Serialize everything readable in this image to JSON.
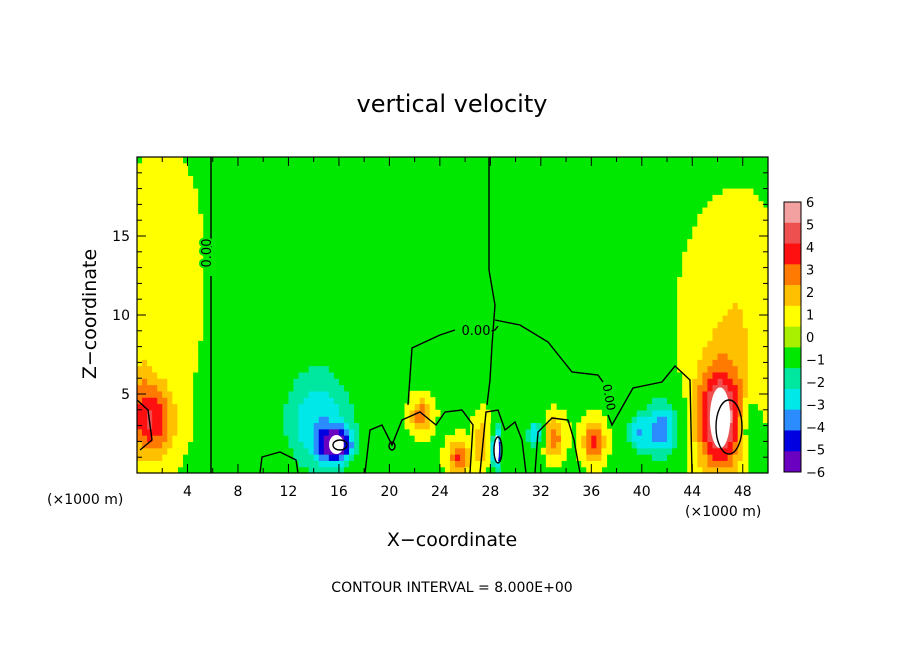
{
  "chart_data": {
    "type": "heatmap",
    "title": "vertical velocity",
    "xlabel": "X−coordinate",
    "ylabel": "Z−coordinate",
    "x_unit_left": "(×1000 m)",
    "x_unit_right": "(×1000 m)",
    "xlim": [
      0,
      50
    ],
    "ylim": [
      0,
      20
    ],
    "x_ticks": [
      4,
      8,
      12,
      16,
      20,
      24,
      28,
      32,
      36,
      40,
      44,
      48
    ],
    "y_ticks": [
      5,
      10,
      15
    ],
    "contour_interval_label": "CONTOUR INTERVAL = 8.000E+00",
    "contour_labels": [
      "0.00",
      "0.00",
      "0.00"
    ],
    "background_value": 0.3,
    "colorbar": {
      "levels": [
        6,
        5,
        4,
        3,
        2,
        1,
        0,
        -1,
        -2,
        -3,
        -4,
        -5,
        -6
      ],
      "labels": [
        "6",
        "5",
        "4",
        "3",
        "2",
        "1",
        "0",
        "−1",
        "−2",
        "−3",
        "−4",
        "−5",
        "−6"
      ],
      "colors": [
        "#f3a0a0",
        "#ee5050",
        "#ff1010",
        "#ff7a00",
        "#ffc000",
        "#ffff00",
        "#a8f000",
        "#00e800",
        "#00e8a0",
        "#00e8e8",
        "#2a8cff",
        "#0000e0",
        "#6a00c0"
      ]
    },
    "features": [
      {
        "x": 1.5,
        "z": 3.3,
        "sx": 1.6,
        "sz": 2.2,
        "value": 3.2
      },
      {
        "x": 0.5,
        "z": 4.0,
        "sx": 1.0,
        "sz": 3.0,
        "value": 1.8
      },
      {
        "x": 14.5,
        "z": 3.0,
        "sx": 3.0,
        "sz": 3.5,
        "value": -3.2
      },
      {
        "x": 15.8,
        "z": 1.8,
        "sx": 1.3,
        "sz": 1.0,
        "value": -5.5
      },
      {
        "x": 13.5,
        "z": 9.0,
        "sx": 5.0,
        "sz": 8.0,
        "value": -0.9
      },
      {
        "x": 22.5,
        "z": 3.7,
        "sx": 0.8,
        "sz": 1.0,
        "value": 3.0
      },
      {
        "x": 25.5,
        "z": 1.0,
        "sx": 0.8,
        "sz": 1.0,
        "value": 3.5
      },
      {
        "x": 28.5,
        "z": 1.5,
        "sx": 0.4,
        "sz": 1.5,
        "value": -5.8
      },
      {
        "x": 27.3,
        "z": 2.0,
        "sx": 0.6,
        "sz": 1.5,
        "value": 2.2
      },
      {
        "x": 31.5,
        "z": 2.5,
        "sx": 0.7,
        "sz": 1.0,
        "value": -3.8
      },
      {
        "x": 33.0,
        "z": 2.3,
        "sx": 0.8,
        "sz": 1.2,
        "value": 3.0
      },
      {
        "x": 36.2,
        "z": 2.0,
        "sx": 0.8,
        "sz": 1.2,
        "value": 3.8
      },
      {
        "x": 39.5,
        "z": 2.5,
        "sx": 0.8,
        "sz": 1.2,
        "value": -3.0
      },
      {
        "x": 41.5,
        "z": 2.8,
        "sx": 1.6,
        "sz": 2.0,
        "value": -4.5
      },
      {
        "x": 46.2,
        "z": 3.5,
        "sx": 1.8,
        "sz": 3.2,
        "value": 6.0
      },
      {
        "x": 47.5,
        "z": 10.0,
        "sx": 3.5,
        "sz": 6.0,
        "value": 1.2
      },
      {
        "x": 2.0,
        "z": 12.0,
        "sx": 3.0,
        "sz": 7.0,
        "value": 0.9
      },
      {
        "x": 48.5,
        "z": 3.0,
        "sx": 0.8,
        "sz": 2.0,
        "value": -2.0
      }
    ]
  }
}
